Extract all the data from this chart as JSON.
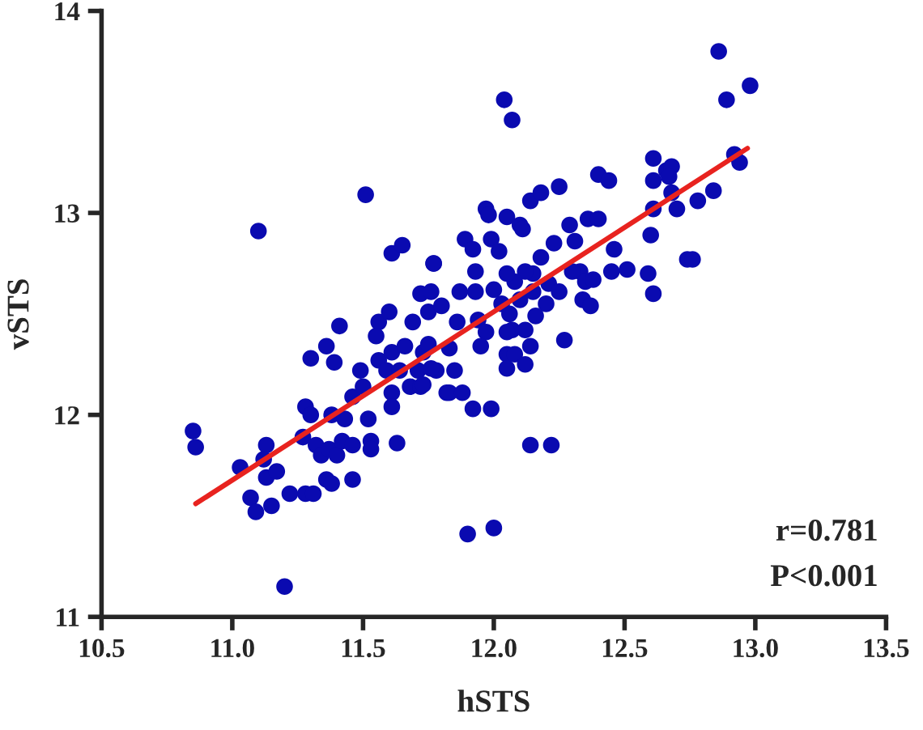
{
  "chart_data": {
    "type": "scatter",
    "xlabel": "hSTS",
    "ylabel": "vSTS",
    "xlim": [
      10.5,
      13.5
    ],
    "ylim": [
      11,
      14
    ],
    "xticks": [
      10.5,
      {
        "value": 11,
        "label": "11.0"
      },
      11.5,
      {
        "value": 12,
        "label": "12.0"
      },
      12.5,
      {
        "value": 13,
        "label": "13.0"
      },
      13.5
    ],
    "yticks": [
      11,
      12,
      13,
      14
    ],
    "grid": false,
    "annotations": [
      "r=0.781",
      "P<0.001"
    ],
    "series": [
      {
        "marker": "circle",
        "color": "#0a0ab0",
        "x": [
          10.85,
          10.86,
          11.1,
          11.51,
          11.61,
          11.65,
          11.77,
          11.03,
          11.07,
          11.09,
          11.15,
          11.2,
          11.22,
          11.28,
          11.31,
          11.13,
          11.12,
          11.13,
          11.17,
          11.27,
          11.28,
          11.3,
          11.3,
          11.36,
          11.39,
          11.41,
          11.32,
          11.34,
          11.37,
          11.4,
          11.36,
          11.38,
          11.46,
          11.42,
          11.46,
          11.38,
          11.43,
          11.46,
          11.49,
          11.5,
          11.52,
          11.53,
          11.53,
          11.63,
          11.56,
          11.6,
          11.55,
          11.56,
          11.61,
          11.59,
          11.61,
          11.61,
          11.66,
          11.64,
          11.69,
          11.72,
          11.76,
          11.75,
          11.73,
          11.71,
          11.68,
          11.72,
          11.78,
          11.82,
          12.04,
          12.07,
          11.77,
          11.8,
          11.75,
          11.76,
          11.73,
          11.83,
          11.86,
          11.85,
          11.83,
          11.88,
          11.92,
          11.99,
          11.9,
          12.0,
          12.14,
          12.22,
          11.89,
          11.92,
          11.93,
          11.87,
          11.93,
          11.97,
          11.98,
          11.99,
          12.02,
          12.05,
          12.1,
          12.11,
          12.14,
          12.18,
          12.25,
          12.4,
          12.44,
          12.61,
          12.66,
          12.61,
          12.29,
          12.36,
          12.4,
          12.31,
          12.46,
          12.23,
          12.18,
          12.15,
          12.12,
          12.08,
          12.05,
          12.0,
          12.03,
          12.1,
          12.15,
          12.21,
          12.25,
          12.2,
          12.16,
          12.06,
          12.07,
          12.12,
          12.05,
          11.94,
          11.97,
          11.95,
          12.05,
          12.05,
          12.08,
          12.12,
          12.14,
          12.27,
          12.33,
          12.35,
          12.38,
          12.34,
          12.37,
          12.3,
          12.45,
          12.51,
          12.59,
          12.61,
          12.6,
          12.61,
          12.86,
          12.98,
          12.89,
          12.68,
          12.67,
          12.92,
          12.94,
          12.68,
          12.7,
          12.78,
          12.84,
          12.74,
          12.76
        ],
        "values": [
          11.92,
          11.84,
          12.91,
          13.09,
          12.8,
          12.84,
          12.75,
          11.74,
          11.59,
          11.52,
          11.55,
          11.15,
          11.61,
          11.61,
          11.61,
          11.85,
          11.78,
          11.69,
          11.72,
          11.89,
          12.04,
          12.0,
          12.28,
          12.34,
          12.26,
          12.44,
          11.85,
          11.8,
          11.83,
          11.8,
          11.68,
          11.66,
          11.68,
          11.87,
          11.85,
          12.0,
          11.98,
          12.09,
          12.22,
          12.14,
          11.98,
          11.87,
          11.83,
          11.86,
          12.46,
          12.51,
          12.39,
          12.27,
          12.31,
          12.22,
          12.11,
          12.04,
          12.34,
          12.22,
          12.46,
          12.6,
          12.61,
          12.51,
          12.31,
          12.22,
          12.14,
          12.14,
          12.22,
          12.11,
          13.56,
          13.46,
          12.75,
          12.54,
          12.35,
          12.23,
          12.15,
          12.33,
          12.46,
          12.22,
          12.11,
          12.11,
          12.03,
          12.03,
          11.41,
          11.44,
          11.85,
          11.85,
          12.87,
          12.82,
          12.71,
          12.61,
          12.61,
          13.02,
          12.99,
          12.87,
          12.81,
          12.98,
          12.94,
          12.92,
          13.06,
          13.1,
          13.13,
          13.19,
          13.16,
          13.27,
          13.21,
          13.16,
          12.94,
          12.97,
          12.97,
          12.86,
          12.82,
          12.85,
          12.78,
          12.7,
          12.71,
          12.66,
          12.7,
          12.62,
          12.55,
          12.57,
          12.61,
          12.65,
          12.61,
          12.55,
          12.49,
          12.5,
          12.42,
          12.42,
          12.41,
          12.47,
          12.41,
          12.34,
          12.3,
          12.23,
          12.3,
          12.25,
          12.34,
          12.37,
          12.71,
          12.66,
          12.67,
          12.57,
          12.54,
          12.71,
          12.71,
          12.72,
          12.7,
          12.6,
          12.89,
          13.02,
          13.8,
          13.63,
          13.56,
          13.23,
          13.18,
          13.29,
          13.25,
          13.1,
          13.02,
          13.06,
          13.11,
          12.77,
          12.77
        ]
      },
      {
        "type": "line",
        "color": "#e8231f",
        "x": [
          10.86,
          12.97
        ],
        "values": [
          11.56,
          13.32
        ]
      }
    ]
  }
}
